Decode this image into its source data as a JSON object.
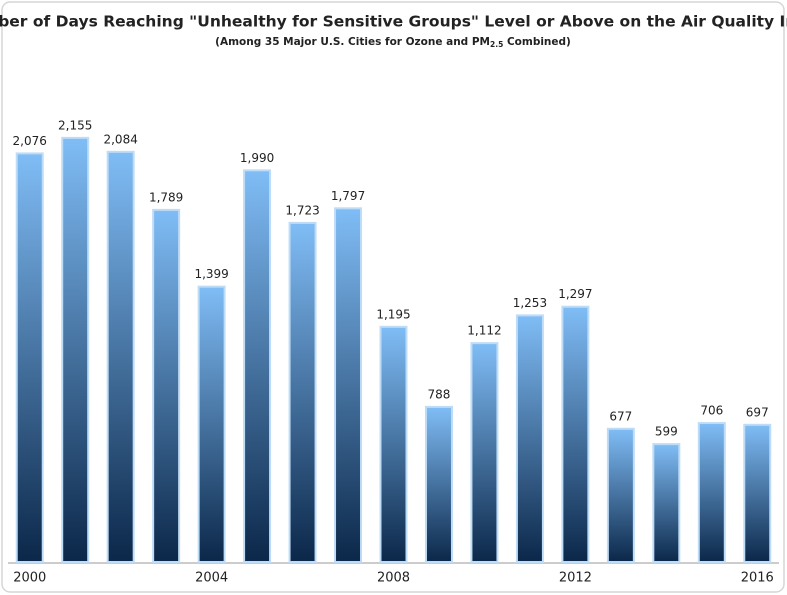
{
  "chart_data": {
    "type": "bar",
    "title": "Number of Days Reaching \"Unhealthy for Sensitive Groups\" Level or Above on the Air Quality Index",
    "subtitle": [
      "(Among 35 Major U.S. Cities for Ozone and PM",
      "2.5",
      " Combined)"
    ],
    "categories": [
      "2000",
      null,
      null,
      null,
      "2004",
      null,
      null,
      null,
      "2008",
      null,
      null,
      null,
      "2012",
      null,
      null,
      null,
      "2016"
    ],
    "values": [
      2076,
      2155,
      2084,
      1789,
      1399,
      1990,
      1723,
      1797,
      1195,
      788,
      1112,
      1253,
      1297,
      677,
      599,
      706,
      697
    ],
    "value_labels": [
      "2,076",
      "2,155",
      "2,084",
      "1,789",
      "1,399",
      "1,990",
      "1,723",
      "1,797",
      "1,195",
      "788",
      "1,112",
      "1,253",
      "1,297",
      "677",
      "599",
      "706",
      "697"
    ],
    "gradient": [
      "#80bdf6",
      "#0b2749"
    ],
    "ylim": [
      0,
      2200
    ]
  }
}
